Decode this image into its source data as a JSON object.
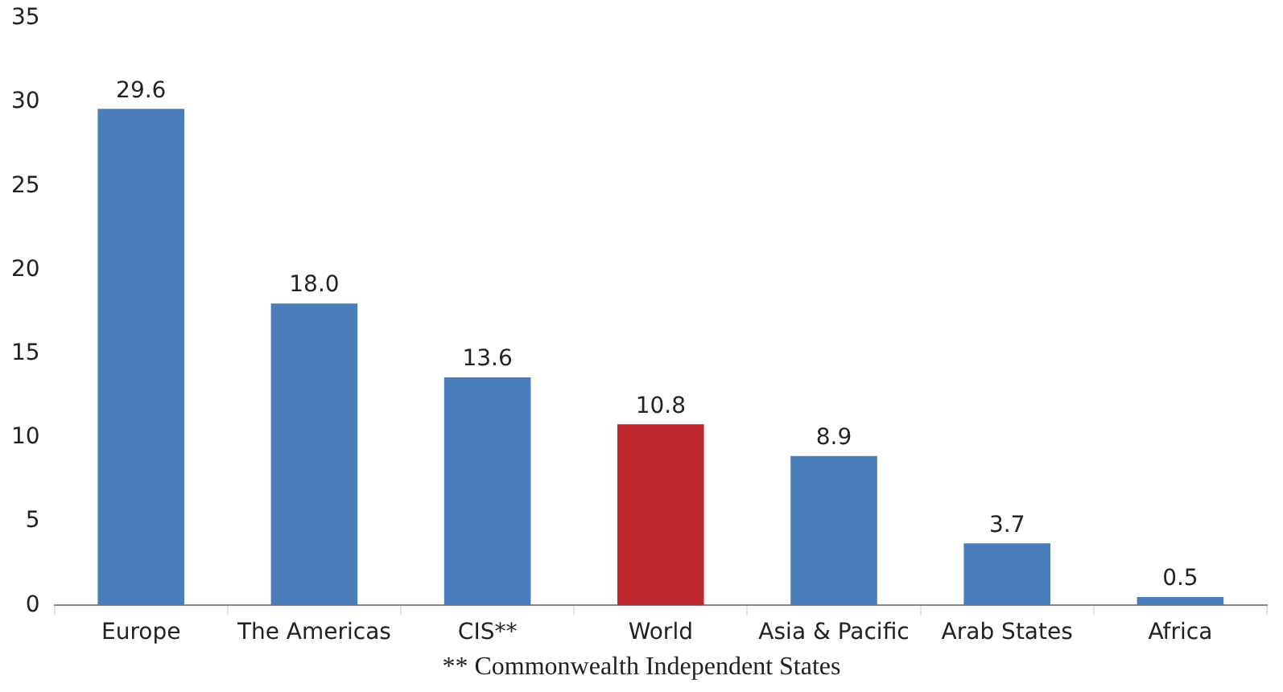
{
  "chart_data": {
    "type": "bar",
    "categories": [
      "Europe",
      "The Americas",
      "CIS**",
      "World",
      "Asia & Pacific",
      "Arab States",
      "Africa"
    ],
    "values": [
      29.6,
      18.0,
      13.6,
      10.8,
      8.9,
      3.7,
      0.5
    ],
    "colors": [
      "#4a7ebb",
      "#4a7ebb",
      "#4a7ebb",
      "#c0272d",
      "#4a7ebb",
      "#4a7ebb",
      "#4a7ebb"
    ],
    "value_labels": [
      "29.6",
      "18.0",
      "13.6",
      "10.8",
      "8.9",
      "3.7",
      "0.5"
    ],
    "ylim": [
      0,
      35
    ],
    "yticks": [
      0,
      5,
      10,
      15,
      20,
      25,
      30,
      35
    ],
    "grid": false,
    "legend": false,
    "annotations": [
      "** Commonwealth Independent States"
    ]
  }
}
